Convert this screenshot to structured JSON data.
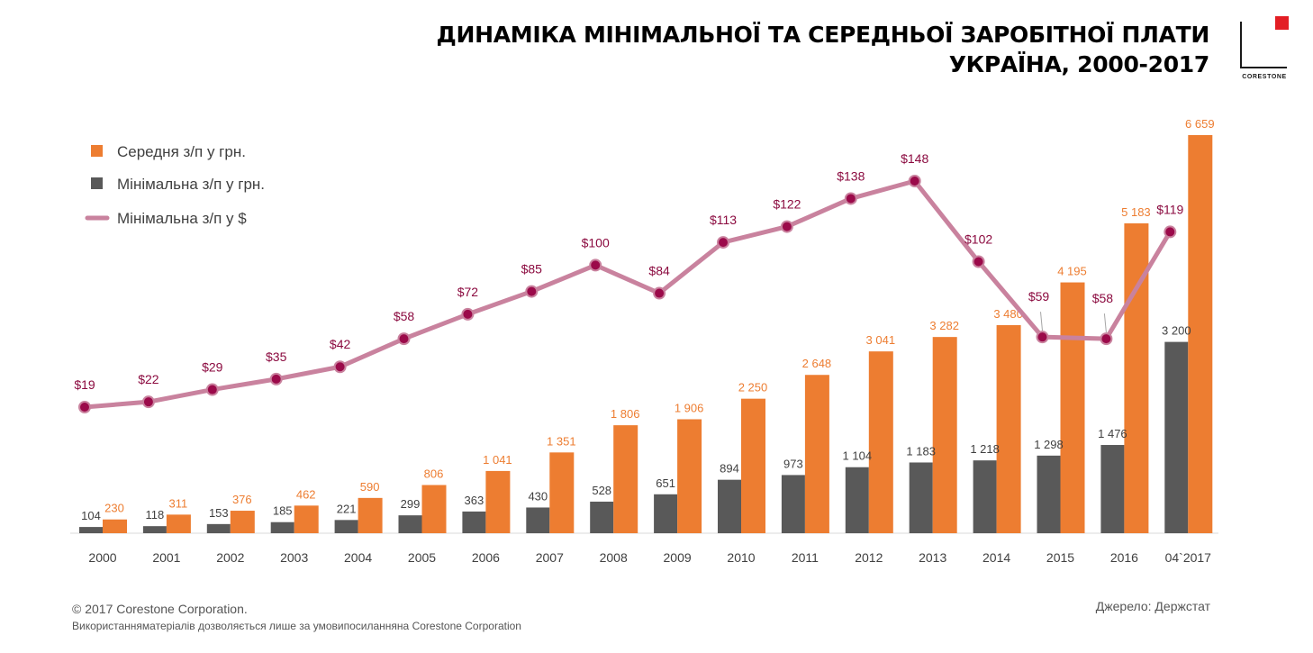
{
  "header": {
    "title_line1": "ДИНАМІКА МІНІМАЛЬНОЇ ТА СЕРЕДНЬОЇ ЗАРОБІТНОЇ ПЛАТИ",
    "title_line2": "УКРАЇНА, 2000-2017"
  },
  "logo": {
    "text": "CORESTONE"
  },
  "legend": {
    "average_uah": "Середня з/п у грн.",
    "minimum_uah": "Мінімальна з/п у грн.",
    "minimum_usd": "Мінімальна з/п у $"
  },
  "colors": {
    "average_bar": "#ed7d31",
    "minimum_bar": "#595959",
    "usd_line": "#c9829e",
    "usd_marker": "#9b0a4a",
    "usd_label": "#8b0a3f"
  },
  "chart_data": {
    "type": "bar",
    "categories": [
      "2000",
      "2001",
      "2002",
      "2003",
      "2004",
      "2005",
      "2006",
      "2007",
      "2008",
      "2009",
      "2010",
      "2011",
      "2012",
      "2013",
      "2014",
      "2015",
      "2016",
      "04`2017"
    ],
    "series": [
      {
        "name": "Мінімальна з/п у грн.",
        "values": [
          104,
          118,
          153,
          185,
          221,
          299,
          363,
          430,
          528,
          651,
          894,
          973,
          1104,
          1183,
          1218,
          1298,
          1476,
          3200
        ],
        "labels": [
          "104",
          "118",
          "153",
          "185",
          "221",
          "299",
          "363",
          "430",
          "528",
          "651",
          "894",
          "973",
          "1 104",
          "1 183",
          "1 218",
          "1 298",
          "1 476",
          "3 200"
        ]
      },
      {
        "name": "Середня з/п у грн.",
        "values": [
          230,
          311,
          376,
          462,
          590,
          806,
          1041,
          1351,
          1806,
          1906,
          2250,
          2648,
          3041,
          3282,
          3480,
          4195,
          5183,
          6659
        ],
        "labels": [
          "230",
          "311",
          "376",
          "462",
          "590",
          "806",
          "1 041",
          "1 351",
          "1 806",
          "1 906",
          "2 250",
          "2 648",
          "3 041",
          "3 282",
          "3 480",
          "4 195",
          "5 183",
          "6 659"
        ]
      },
      {
        "name": "Мінімальна з/п у $",
        "type": "line",
        "values": [
          19,
          22,
          29,
          35,
          42,
          58,
          72,
          85,
          100,
          84,
          113,
          122,
          138,
          148,
          102,
          59,
          58,
          119
        ],
        "labels": [
          "$19",
          "$22",
          "$29",
          "$35",
          "$42",
          "$58",
          "$72",
          "$85",
          "$100",
          "$84",
          "$113",
          "$122",
          "$138",
          "$148",
          "$102",
          "$59",
          "$58",
          "$119"
        ]
      }
    ],
    "title": "ДИНАМІКА МІНІМАЛЬНОЇ ТА СЕРЕДНЬОЇ ЗАРОБІТНОЇ ПЛАТИ УКРАЇНА, 2000-2017",
    "xlabel": "",
    "ylabel": "",
    "legend": "top-left",
    "grid": false
  },
  "footer": {
    "copyright": "© 2017  Corestone Corporation.",
    "usage": "Використанняматеріалів дозволяється лише за умовипосиланняна Corestone Corporation",
    "source": "Джерело: Держстат"
  }
}
